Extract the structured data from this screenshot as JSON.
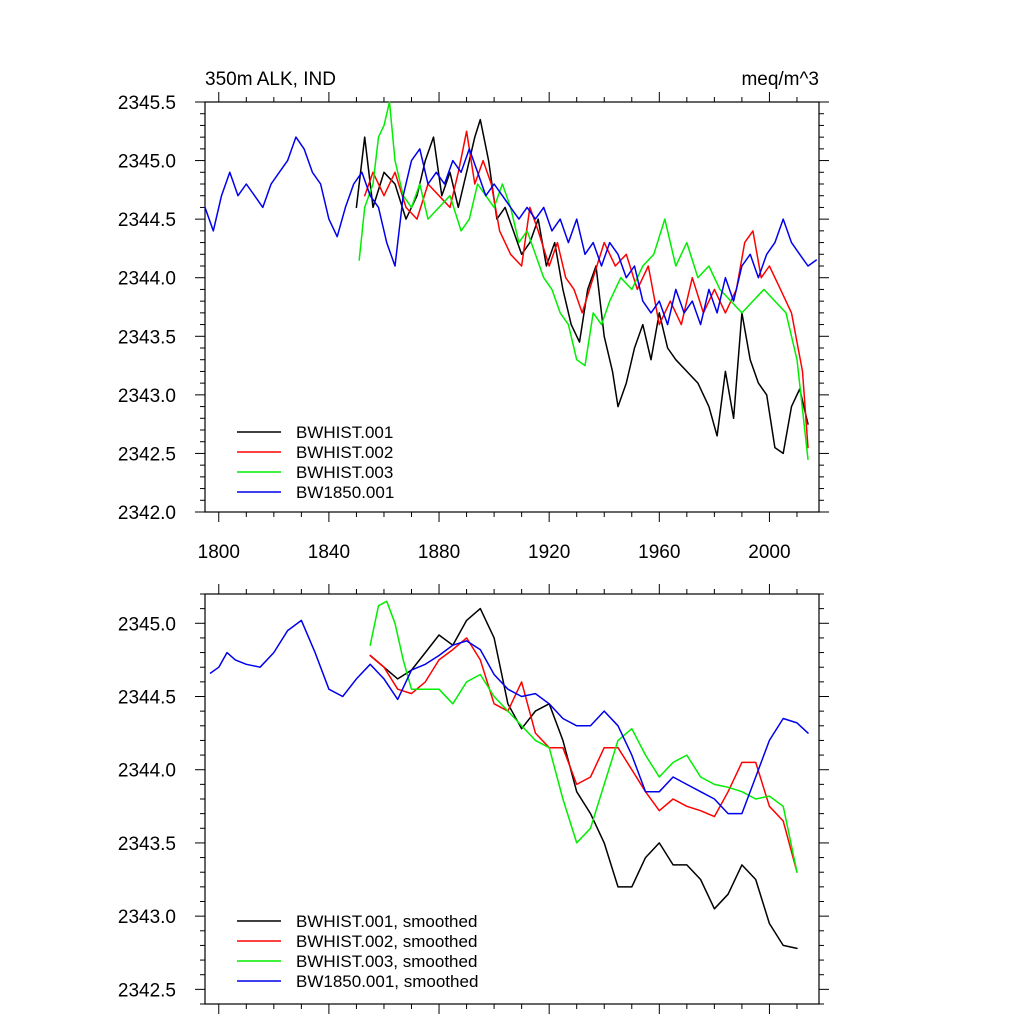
{
  "chart_data": [
    {
      "type": "line",
      "title_left": "350m ALK, IND",
      "title_right": "meq/m^3",
      "xlim": [
        1795,
        2018
      ],
      "ylim": [
        2342.0,
        2345.5
      ],
      "xticks": [
        1800,
        1840,
        1880,
        1920,
        1960,
        2000
      ],
      "xtick_labels": [
        "1800",
        "1840",
        "1880",
        "1920",
        "1960",
        "2000"
      ],
      "yticks": [
        2342.0,
        2342.5,
        2343.0,
        2343.5,
        2344.0,
        2344.5,
        2345.0,
        2345.5
      ],
      "ytick_labels": [
        "2342.0",
        "2342.5",
        "2343.0",
        "2343.5",
        "2344.0",
        "2344.5",
        "2345.0",
        "2345.5"
      ],
      "legend_position": "bottom-left",
      "series": [
        {
          "name": "BWHIST.001",
          "color": "#000000",
          "x": [
            1850,
            1853,
            1856,
            1860,
            1864,
            1868,
            1872,
            1875,
            1878,
            1881,
            1884,
            1887,
            1890,
            1893,
            1895,
            1898,
            1901,
            1904,
            1907,
            1910,
            1913,
            1916,
            1919,
            1922,
            1925,
            1928,
            1931,
            1934,
            1937,
            1940,
            1943,
            1945,
            1948,
            1951,
            1954,
            1957,
            1960,
            1963,
            1966,
            1970,
            1974,
            1978,
            1981,
            1984,
            1987,
            1990,
            1993,
            1996,
            1999,
            2002,
            2005,
            2008,
            2011,
            2014
          ],
          "y": [
            2344.6,
            2345.2,
            2344.6,
            2344.9,
            2344.8,
            2344.5,
            2344.7,
            2345.0,
            2345.2,
            2344.7,
            2344.9,
            2344.6,
            2344.9,
            2345.2,
            2345.35,
            2345.0,
            2344.5,
            2344.6,
            2344.4,
            2344.2,
            2344.3,
            2344.5,
            2344.1,
            2344.3,
            2343.9,
            2343.6,
            2343.45,
            2343.9,
            2344.1,
            2343.5,
            2343.2,
            2342.9,
            2343.1,
            2343.4,
            2343.6,
            2343.3,
            2343.7,
            2343.4,
            2343.3,
            2343.2,
            2343.1,
            2342.9,
            2342.65,
            2343.2,
            2342.8,
            2343.7,
            2343.3,
            2343.1,
            2343.0,
            2342.55,
            2342.5,
            2342.9,
            2343.05,
            2342.75
          ]
        },
        {
          "name": "BWHIST.002",
          "color": "#ff0000",
          "x": [
            1853,
            1856,
            1860,
            1864,
            1868,
            1872,
            1876,
            1880,
            1884,
            1887,
            1890,
            1893,
            1896,
            1899,
            1902,
            1906,
            1910,
            1913,
            1916,
            1920,
            1923,
            1926,
            1929,
            1932,
            1936,
            1940,
            1944,
            1948,
            1952,
            1956,
            1960,
            1964,
            1968,
            1972,
            1976,
            1980,
            1984,
            1988,
            1991,
            1994,
            1997,
            2000,
            2004,
            2008,
            2012,
            2014
          ],
          "y": [
            2344.7,
            2344.9,
            2344.7,
            2344.9,
            2344.6,
            2344.5,
            2344.8,
            2344.7,
            2344.6,
            2344.9,
            2345.25,
            2344.8,
            2345.0,
            2344.8,
            2344.4,
            2344.2,
            2344.1,
            2344.6,
            2344.4,
            2344.1,
            2344.3,
            2344.0,
            2343.9,
            2343.7,
            2344.0,
            2344.3,
            2344.1,
            2344.2,
            2343.9,
            2344.1,
            2343.6,
            2343.8,
            2343.6,
            2344.0,
            2343.7,
            2343.9,
            2343.7,
            2343.9,
            2344.3,
            2344.4,
            2344.0,
            2344.1,
            2343.9,
            2343.7,
            2343.2,
            2342.55
          ]
        },
        {
          "name": "BWHIST.003",
          "color": "#00ee00",
          "x": [
            1851,
            1853,
            1856,
            1858,
            1860,
            1862,
            1864,
            1867,
            1870,
            1873,
            1876,
            1880,
            1884,
            1888,
            1891,
            1894,
            1897,
            1900,
            1903,
            1906,
            1909,
            1912,
            1915,
            1918,
            1921,
            1924,
            1927,
            1930,
            1933,
            1936,
            1939,
            1942,
            1946,
            1950,
            1954,
            1958,
            1962,
            1966,
            1970,
            1974,
            1978,
            1982,
            1986,
            1990,
            1994,
            1998,
            2002,
            2006,
            2010,
            2014
          ],
          "y": [
            2344.15,
            2344.6,
            2344.8,
            2345.2,
            2345.3,
            2345.5,
            2345.0,
            2344.7,
            2344.6,
            2344.8,
            2344.5,
            2344.6,
            2344.7,
            2344.4,
            2344.5,
            2344.8,
            2344.7,
            2344.6,
            2344.8,
            2344.6,
            2344.3,
            2344.4,
            2344.2,
            2344.0,
            2343.9,
            2343.7,
            2343.6,
            2343.3,
            2343.25,
            2343.7,
            2343.6,
            2343.8,
            2344.0,
            2343.9,
            2344.1,
            2344.2,
            2344.5,
            2344.1,
            2344.3,
            2344.0,
            2344.1,
            2343.9,
            2343.8,
            2343.7,
            2343.8,
            2343.9,
            2343.8,
            2343.7,
            2343.3,
            2342.45
          ]
        },
        {
          "name": "BW1850.001",
          "color": "#0000ee",
          "x": [
            1795,
            1798,
            1801,
            1804,
            1807,
            1810,
            1813,
            1816,
            1819,
            1822,
            1825,
            1828,
            1831,
            1834,
            1837,
            1840,
            1843,
            1846,
            1849,
            1852,
            1855,
            1858,
            1861,
            1864,
            1867,
            1870,
            1873,
            1876,
            1879,
            1882,
            1885,
            1888,
            1891,
            1894,
            1897,
            1900,
            1903,
            1906,
            1909,
            1912,
            1915,
            1918,
            1921,
            1924,
            1927,
            1930,
            1933,
            1936,
            1939,
            1942,
            1945,
            1948,
            1951,
            1954,
            1957,
            1960,
            1963,
            1966,
            1969,
            1972,
            1975,
            1978,
            1981,
            1984,
            1987,
            1990,
            1993,
            1996,
            1999,
            2002,
            2005,
            2008,
            2011,
            2014,
            2017
          ],
          "y": [
            2344.6,
            2344.4,
            2344.7,
            2344.9,
            2344.7,
            2344.8,
            2344.7,
            2344.6,
            2344.8,
            2344.9,
            2345.0,
            2345.2,
            2345.1,
            2344.9,
            2344.8,
            2344.5,
            2344.35,
            2344.6,
            2344.8,
            2344.9,
            2344.7,
            2344.6,
            2344.3,
            2344.1,
            2344.7,
            2345.0,
            2345.1,
            2344.8,
            2344.9,
            2344.8,
            2345.0,
            2344.9,
            2345.1,
            2344.9,
            2344.7,
            2344.8,
            2344.7,
            2344.6,
            2344.5,
            2344.6,
            2344.5,
            2344.6,
            2344.4,
            2344.5,
            2344.3,
            2344.5,
            2344.2,
            2344.3,
            2344.1,
            2344.3,
            2344.2,
            2344.0,
            2344.1,
            2343.8,
            2343.7,
            2343.8,
            2343.6,
            2343.9,
            2343.7,
            2343.8,
            2343.6,
            2343.9,
            2343.7,
            2344.0,
            2343.8,
            2344.1,
            2344.2,
            2344.0,
            2344.2,
            2344.3,
            2344.5,
            2344.3,
            2344.2,
            2344.1,
            2344.15
          ]
        }
      ]
    },
    {
      "type": "line",
      "xlim": [
        1795,
        2018
      ],
      "ylim": [
        2342.4,
        2345.2
      ],
      "xticks": [
        1800,
        1840,
        1880,
        1920,
        1960,
        2000
      ],
      "yticks": [
        2342.5,
        2343.0,
        2343.5,
        2344.0,
        2344.5,
        2345.0
      ],
      "ytick_labels": [
        "2342.5",
        "2343.0",
        "2343.5",
        "2344.0",
        "2344.5",
        "2345.0"
      ],
      "legend_position": "bottom-left",
      "series": [
        {
          "name": "BWHIST.001, smoothed",
          "color": "#000000",
          "x": [
            1855,
            1860,
            1865,
            1870,
            1875,
            1880,
            1885,
            1890,
            1895,
            1900,
            1905,
            1910,
            1915,
            1920,
            1925,
            1930,
            1935,
            1940,
            1945,
            1950,
            1955,
            1960,
            1965,
            1970,
            1975,
            1980,
            1985,
            1990,
            1995,
            2000,
            2005,
            2010
          ],
          "y": [
            2344.78,
            2344.7,
            2344.62,
            2344.68,
            2344.8,
            2344.92,
            2344.85,
            2345.02,
            2345.1,
            2344.9,
            2344.45,
            2344.28,
            2344.4,
            2344.45,
            2344.2,
            2343.85,
            2343.7,
            2343.5,
            2343.2,
            2343.2,
            2343.4,
            2343.5,
            2343.35,
            2343.35,
            2343.25,
            2343.05,
            2343.15,
            2343.35,
            2343.25,
            2342.95,
            2342.8,
            2342.78
          ]
        },
        {
          "name": "BWHIST.002, smoothed",
          "color": "#ff0000",
          "x": [
            1855,
            1860,
            1865,
            1870,
            1875,
            1880,
            1885,
            1890,
            1895,
            1900,
            1905,
            1910,
            1915,
            1920,
            1925,
            1930,
            1935,
            1940,
            1945,
            1950,
            1955,
            1960,
            1965,
            1970,
            1975,
            1980,
            1985,
            1990,
            1995,
            2000,
            2005,
            2010
          ],
          "y": [
            2344.78,
            2344.7,
            2344.55,
            2344.52,
            2344.6,
            2344.75,
            2344.82,
            2344.9,
            2344.75,
            2344.45,
            2344.4,
            2344.6,
            2344.25,
            2344.15,
            2344.15,
            2343.9,
            2343.95,
            2344.15,
            2344.15,
            2344.0,
            2343.85,
            2343.72,
            2343.8,
            2343.75,
            2343.72,
            2343.68,
            2343.85,
            2344.05,
            2344.05,
            2343.75,
            2343.65,
            2343.3
          ]
        },
        {
          "name": "BWHIST.003, smoothed",
          "color": "#00ee00",
          "x": [
            1855,
            1858,
            1861,
            1864,
            1867,
            1870,
            1875,
            1880,
            1885,
            1890,
            1895,
            1900,
            1905,
            1910,
            1915,
            1920,
            1925,
            1930,
            1935,
            1940,
            1945,
            1950,
            1955,
            1960,
            1965,
            1970,
            1975,
            1980,
            1985,
            1990,
            1995,
            2000,
            2005,
            2010
          ],
          "y": [
            2344.85,
            2345.12,
            2345.15,
            2345.0,
            2344.75,
            2344.55,
            2344.55,
            2344.55,
            2344.45,
            2344.6,
            2344.65,
            2344.5,
            2344.4,
            2344.3,
            2344.2,
            2344.15,
            2343.8,
            2343.5,
            2343.6,
            2343.9,
            2344.2,
            2344.28,
            2344.1,
            2343.95,
            2344.05,
            2344.1,
            2343.95,
            2343.9,
            2343.88,
            2343.85,
            2343.8,
            2343.82,
            2343.75,
            2343.3
          ]
        },
        {
          "name": "BW1850.001, smoothed",
          "color": "#0000ee",
          "x": [
            1797,
            1800,
            1803,
            1806,
            1810,
            1815,
            1820,
            1825,
            1830,
            1835,
            1840,
            1845,
            1850,
            1855,
            1860,
            1865,
            1870,
            1875,
            1880,
            1885,
            1890,
            1895,
            1900,
            1905,
            1910,
            1915,
            1920,
            1925,
            1930,
            1935,
            1940,
            1945,
            1950,
            1955,
            1960,
            1965,
            1970,
            1975,
            1980,
            1985,
            1990,
            1995,
            2000,
            2005,
            2010,
            2014
          ],
          "y": [
            2344.66,
            2344.7,
            2344.8,
            2344.75,
            2344.72,
            2344.7,
            2344.8,
            2344.95,
            2345.02,
            2344.8,
            2344.55,
            2344.5,
            2344.62,
            2344.72,
            2344.62,
            2344.48,
            2344.68,
            2344.72,
            2344.78,
            2344.85,
            2344.88,
            2344.82,
            2344.65,
            2344.55,
            2344.5,
            2344.52,
            2344.45,
            2344.35,
            2344.3,
            2344.3,
            2344.4,
            2344.3,
            2344.1,
            2343.85,
            2343.85,
            2343.95,
            2343.9,
            2343.85,
            2343.8,
            2343.7,
            2343.7,
            2343.95,
            2344.2,
            2344.35,
            2344.32,
            2344.25
          ]
        }
      ]
    }
  ]
}
